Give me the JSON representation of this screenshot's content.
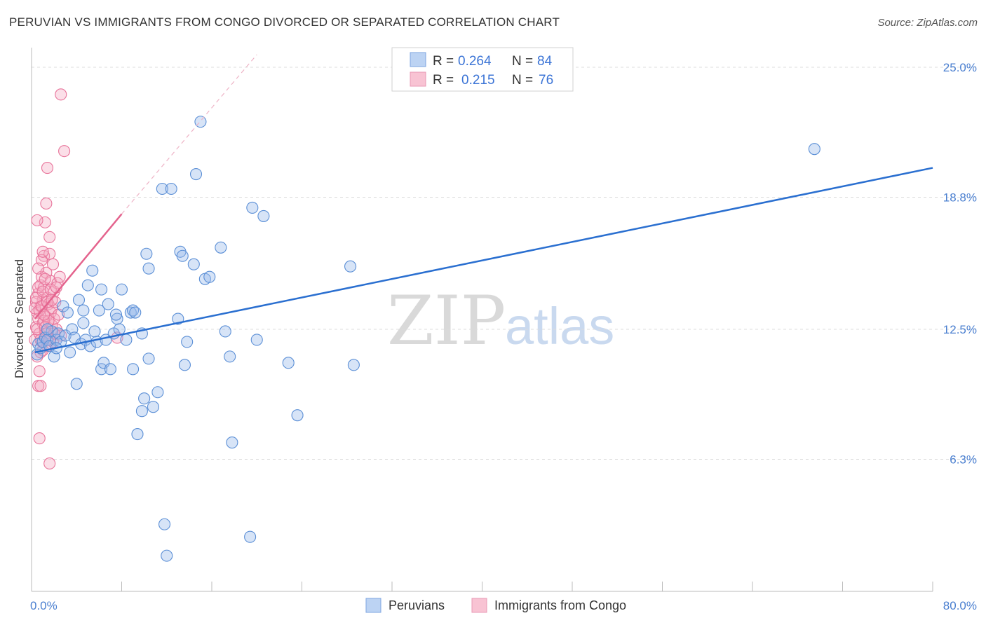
{
  "title": "PERUVIAN VS IMMIGRANTS FROM CONGO DIVORCED OR SEPARATED CORRELATION CHART",
  "source": "Source: ZipAtlas.com",
  "watermark": {
    "zip": "ZIP",
    "atlas": "atlas"
  },
  "legend": {
    "rows": [
      {
        "r_label": "R =",
        "r_value": "0.264",
        "n_label": "N =",
        "n_value": "84"
      },
      {
        "r_label": "R =",
        "r_value": "0.215",
        "n_label": "N =",
        "n_value": "76"
      }
    ]
  },
  "bottom_legend": [
    "Peruvians",
    "Immigrants from Congo"
  ],
  "chart_data": {
    "type": "scatter",
    "title": "PERUVIAN VS IMMIGRANTS FROM CONGO DIVORCED OR SEPARATED CORRELATION CHART",
    "xlabel": "",
    "ylabel": "Divorced or Separated",
    "xlim": [
      0,
      80
    ],
    "ylim": [
      0,
      25.6
    ],
    "x_tick_labels": [
      "0.0%",
      "80.0%"
    ],
    "y_ticks": [
      6.3,
      12.5,
      18.8,
      25.0
    ],
    "y_tick_labels": [
      "6.3%",
      "12.5%",
      "18.8%",
      "25.0%"
    ],
    "grid": true,
    "legend_position": "top-center",
    "colors": {
      "peruvians": "#5b8fd6",
      "congo": "#e8739a",
      "peruvians_line": "#2a6fd0",
      "congo_line": "#e4638d"
    },
    "series": [
      {
        "name": "Peruvians",
        "R": 0.264,
        "N": 84,
        "trend": {
          "x": [
            0.3,
            80
          ],
          "y": [
            11.4,
            20.2
          ]
        },
        "points": [
          [
            0.5,
            11.3
          ],
          [
            0.6,
            11.8
          ],
          [
            0.8,
            11.6
          ],
          [
            1.0,
            11.9
          ],
          [
            1.2,
            12.1
          ],
          [
            1.4,
            12.0
          ],
          [
            1.6,
            11.7
          ],
          [
            1.8,
            12.4
          ],
          [
            2.0,
            11.2
          ],
          [
            2.2,
            12.0
          ],
          [
            2.4,
            12.3
          ],
          [
            2.6,
            11.9
          ],
          [
            2.8,
            13.6
          ],
          [
            3.0,
            12.2
          ],
          [
            3.2,
            13.3
          ],
          [
            3.4,
            11.4
          ],
          [
            3.6,
            12.5
          ],
          [
            3.8,
            12.1
          ],
          [
            4.0,
            9.9
          ],
          [
            4.2,
            13.9
          ],
          [
            4.4,
            11.8
          ],
          [
            4.6,
            12.8
          ],
          [
            4.8,
            12.0
          ],
          [
            5.0,
            14.6
          ],
          [
            5.2,
            11.7
          ],
          [
            5.4,
            15.3
          ],
          [
            5.6,
            12.4
          ],
          [
            5.8,
            11.9
          ],
          [
            6.0,
            13.4
          ],
          [
            6.2,
            10.6
          ],
          [
            6.4,
            10.9
          ],
          [
            6.6,
            12.0
          ],
          [
            6.8,
            13.7
          ],
          [
            7.0,
            10.6
          ],
          [
            7.3,
            12.3
          ],
          [
            7.6,
            13.0
          ],
          [
            7.8,
            12.5
          ],
          [
            8.0,
            14.4
          ],
          [
            8.4,
            12.0
          ],
          [
            8.8,
            13.3
          ],
          [
            9.0,
            10.6
          ],
          [
            9.4,
            7.5
          ],
          [
            9.8,
            12.3
          ],
          [
            10.0,
            9.2
          ],
          [
            10.2,
            16.1
          ],
          [
            10.4,
            15.4
          ],
          [
            10.8,
            8.8
          ],
          [
            11.2,
            9.5
          ],
          [
            11.6,
            19.2
          ],
          [
            11.8,
            3.2
          ],
          [
            12.0,
            1.7
          ],
          [
            12.4,
            19.2
          ],
          [
            13.0,
            13.0
          ],
          [
            13.2,
            16.2
          ],
          [
            13.4,
            16.0
          ],
          [
            13.6,
            10.8
          ],
          [
            13.8,
            11.9
          ],
          [
            14.4,
            15.6
          ],
          [
            14.6,
            19.9
          ],
          [
            15.4,
            14.9
          ],
          [
            15.8,
            15.0
          ],
          [
            16.8,
            16.4
          ],
          [
            17.2,
            12.4
          ],
          [
            17.6,
            11.2
          ],
          [
            17.8,
            7.1
          ],
          [
            19.4,
            2.6
          ],
          [
            19.6,
            18.3
          ],
          [
            20.0,
            12.0
          ],
          [
            20.6,
            17.9
          ],
          [
            22.8,
            10.9
          ],
          [
            23.6,
            8.4
          ],
          [
            28.3,
            15.5
          ],
          [
            28.6,
            10.8
          ],
          [
            69.5,
            21.1
          ],
          [
            10.4,
            11.1
          ],
          [
            6.2,
            14.4
          ],
          [
            9.0,
            13.4
          ],
          [
            4.6,
            13.4
          ],
          [
            2.2,
            11.6
          ],
          [
            1.4,
            12.5
          ],
          [
            15.0,
            22.4
          ],
          [
            9.8,
            8.6
          ],
          [
            7.5,
            13.2
          ],
          [
            9.2,
            13.3
          ]
        ]
      },
      {
        "name": "Immigrants from Congo",
        "R": 0.215,
        "N": 76,
        "trend": {
          "x": [
            0.3,
            8.0
          ],
          "y": [
            13.0,
            18.0
          ]
        },
        "trend_extension": {
          "x": [
            8.0,
            20.0
          ],
          "y": [
            18.0,
            25.6
          ]
        },
        "points": [
          [
            0.3,
            12.0
          ],
          [
            0.4,
            12.6
          ],
          [
            0.5,
            13.3
          ],
          [
            0.5,
            11.2
          ],
          [
            0.6,
            14.2
          ],
          [
            0.6,
            13.0
          ],
          [
            0.7,
            12.3
          ],
          [
            0.7,
            10.5
          ],
          [
            0.8,
            14.6
          ],
          [
            0.8,
            13.6
          ],
          [
            0.9,
            11.9
          ],
          [
            0.9,
            15.0
          ],
          [
            1.0,
            12.8
          ],
          [
            1.0,
            13.9
          ],
          [
            1.1,
            14.5
          ],
          [
            1.1,
            16.0
          ],
          [
            1.2,
            12.4
          ],
          [
            1.2,
            17.6
          ],
          [
            1.3,
            13.1
          ],
          [
            1.3,
            15.2
          ],
          [
            1.4,
            11.7
          ],
          [
            1.4,
            14.0
          ],
          [
            1.5,
            13.7
          ],
          [
            1.5,
            12.1
          ],
          [
            1.6,
            16.1
          ],
          [
            1.7,
            14.8
          ],
          [
            1.7,
            13.3
          ],
          [
            1.8,
            12.7
          ],
          [
            1.9,
            15.6
          ],
          [
            1.9,
            11.9
          ],
          [
            2.0,
            14.3
          ],
          [
            2.0,
            13.0
          ],
          [
            2.2,
            12.5
          ],
          [
            2.3,
            14.7
          ],
          [
            2.5,
            15.0
          ],
          [
            2.6,
            12.2
          ],
          [
            0.6,
            9.8
          ],
          [
            0.7,
            7.3
          ],
          [
            0.8,
            9.8
          ],
          [
            1.6,
            6.1
          ],
          [
            1.4,
            20.2
          ],
          [
            1.3,
            18.5
          ],
          [
            1.6,
            16.9
          ],
          [
            2.6,
            23.7
          ],
          [
            2.9,
            21.0
          ],
          [
            7.6,
            12.1
          ],
          [
            0.5,
            17.7
          ],
          [
            0.9,
            15.8
          ],
          [
            1.1,
            12.9
          ],
          [
            0.4,
            13.8
          ],
          [
            0.6,
            14.5
          ],
          [
            0.8,
            12.0
          ],
          [
            1.0,
            11.5
          ],
          [
            1.2,
            14.9
          ],
          [
            1.5,
            12.9
          ],
          [
            1.8,
            13.5
          ],
          [
            2.1,
            13.8
          ],
          [
            2.4,
            13.2
          ],
          [
            0.3,
            13.5
          ],
          [
            0.4,
            14.0
          ],
          [
            0.5,
            12.5
          ],
          [
            0.7,
            13.4
          ],
          [
            0.9,
            13.6
          ],
          [
            1.0,
            14.3
          ],
          [
            1.1,
            13.2
          ],
          [
            1.2,
            12.6
          ],
          [
            1.3,
            12.3
          ],
          [
            1.4,
            13.8
          ],
          [
            1.6,
            12.0
          ],
          [
            1.7,
            14.4
          ],
          [
            1.8,
            13.9
          ],
          [
            2.0,
            12.3
          ],
          [
            2.2,
            14.5
          ],
          [
            0.6,
            15.4
          ],
          [
            0.8,
            11.4
          ],
          [
            1.0,
            16.2
          ]
        ]
      }
    ]
  }
}
